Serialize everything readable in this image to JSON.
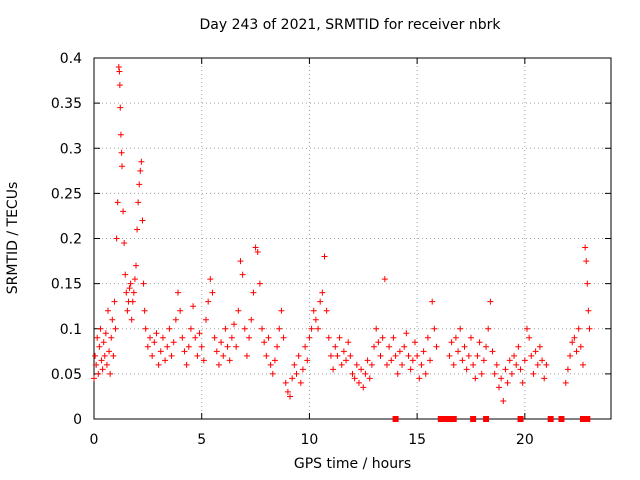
{
  "chart_data": {
    "type": "scatter",
    "title": "Day 243 of 2021, SRMTID for receiver nbrk",
    "xlabel": "GPS time / hours",
    "ylabel": "SRMTID / TECUs",
    "xlim": [
      0,
      24
    ],
    "ylim": [
      0,
      0.4
    ],
    "xticks": [
      0,
      5,
      10,
      15,
      20
    ],
    "xtick_labels": [
      "0",
      "5",
      "10",
      "15",
      "20"
    ],
    "yticks": [
      0,
      0.05,
      0.1,
      0.15,
      0.2,
      0.25,
      0.3,
      0.35,
      0.4
    ],
    "ytick_labels": [
      "0",
      "0.05",
      "0.1",
      "0.15",
      "0.2",
      "0.25",
      "0.3",
      "0.35",
      "0.4"
    ],
    "grid": true,
    "marker": "plus",
    "color": "#ff0000",
    "series": [
      {
        "name": "SRMTID",
        "points": [
          [
            0.0,
            0.045
          ],
          [
            0.05,
            0.07
          ],
          [
            0.1,
            0.06
          ],
          [
            0.15,
            0.09
          ],
          [
            0.2,
            0.05
          ],
          [
            0.25,
            0.08
          ],
          [
            0.3,
            0.1
          ],
          [
            0.35,
            0.065
          ],
          [
            0.4,
            0.055
          ],
          [
            0.45,
            0.085
          ],
          [
            0.5,
            0.07
          ],
          [
            0.55,
            0.095
          ],
          [
            0.6,
            0.06
          ],
          [
            0.65,
            0.12
          ],
          [
            0.7,
            0.075
          ],
          [
            0.75,
            0.05
          ],
          [
            0.8,
            0.09
          ],
          [
            0.85,
            0.11
          ],
          [
            0.9,
            0.07
          ],
          [
            0.95,
            0.13
          ],
          [
            1.0,
            0.1
          ],
          [
            1.05,
            0.2
          ],
          [
            1.1,
            0.24
          ],
          [
            1.15,
            0.39
          ],
          [
            1.18,
            0.385
          ],
          [
            1.2,
            0.37
          ],
          [
            1.22,
            0.345
          ],
          [
            1.25,
            0.315
          ],
          [
            1.28,
            0.295
          ],
          [
            1.3,
            0.28
          ],
          [
            1.35,
            0.23
          ],
          [
            1.4,
            0.195
          ],
          [
            1.45,
            0.16
          ],
          [
            1.5,
            0.14
          ],
          [
            1.55,
            0.12
          ],
          [
            1.6,
            0.13
          ],
          [
            1.65,
            0.145
          ],
          [
            1.7,
            0.15
          ],
          [
            1.75,
            0.11
          ],
          [
            1.8,
            0.13
          ],
          [
            1.85,
            0.14
          ],
          [
            1.9,
            0.155
          ],
          [
            1.95,
            0.17
          ],
          [
            2.0,
            0.21
          ],
          [
            2.05,
            0.24
          ],
          [
            2.1,
            0.26
          ],
          [
            2.15,
            0.275
          ],
          [
            2.2,
            0.285
          ],
          [
            2.25,
            0.22
          ],
          [
            2.3,
            0.15
          ],
          [
            2.35,
            0.12
          ],
          [
            2.4,
            0.1
          ],
          [
            2.5,
            0.08
          ],
          [
            2.6,
            0.09
          ],
          [
            2.7,
            0.07
          ],
          [
            2.8,
            0.085
          ],
          [
            2.9,
            0.095
          ],
          [
            3.0,
            0.06
          ],
          [
            3.1,
            0.075
          ],
          [
            3.2,
            0.09
          ],
          [
            3.3,
            0.065
          ],
          [
            3.4,
            0.08
          ],
          [
            3.5,
            0.1
          ],
          [
            3.6,
            0.07
          ],
          [
            3.7,
            0.085
          ],
          [
            3.8,
            0.11
          ],
          [
            3.9,
            0.14
          ],
          [
            4.0,
            0.12
          ],
          [
            4.1,
            0.09
          ],
          [
            4.2,
            0.075
          ],
          [
            4.3,
            0.06
          ],
          [
            4.4,
            0.08
          ],
          [
            4.5,
            0.1
          ],
          [
            4.6,
            0.125
          ],
          [
            4.7,
            0.09
          ],
          [
            4.8,
            0.07
          ],
          [
            4.9,
            0.095
          ],
          [
            5.0,
            0.08
          ],
          [
            5.1,
            0.065
          ],
          [
            5.2,
            0.11
          ],
          [
            5.3,
            0.13
          ],
          [
            5.4,
            0.155
          ],
          [
            5.5,
            0.14
          ],
          [
            5.6,
            0.09
          ],
          [
            5.7,
            0.075
          ],
          [
            5.8,
            0.06
          ],
          [
            5.9,
            0.085
          ],
          [
            6.0,
            0.07
          ],
          [
            6.1,
            0.1
          ],
          [
            6.2,
            0.08
          ],
          [
            6.3,
            0.065
          ],
          [
            6.4,
            0.09
          ],
          [
            6.5,
            0.105
          ],
          [
            6.6,
            0.08
          ],
          [
            6.7,
            0.12
          ],
          [
            6.8,
            0.175
          ],
          [
            6.9,
            0.16
          ],
          [
            7.0,
            0.1
          ],
          [
            7.1,
            0.07
          ],
          [
            7.2,
            0.09
          ],
          [
            7.3,
            0.11
          ],
          [
            7.4,
            0.14
          ],
          [
            7.5,
            0.19
          ],
          [
            7.6,
            0.185
          ],
          [
            7.7,
            0.15
          ],
          [
            7.8,
            0.1
          ],
          [
            7.9,
            0.085
          ],
          [
            8.0,
            0.07
          ],
          [
            8.1,
            0.09
          ],
          [
            8.2,
            0.06
          ],
          [
            8.3,
            0.05
          ],
          [
            8.4,
            0.065
          ],
          [
            8.5,
            0.08
          ],
          [
            8.6,
            0.1
          ],
          [
            8.7,
            0.12
          ],
          [
            8.8,
            0.09
          ],
          [
            8.9,
            0.04
          ],
          [
            9.0,
            0.03
          ],
          [
            9.1,
            0.025
          ],
          [
            9.2,
            0.045
          ],
          [
            9.3,
            0.06
          ],
          [
            9.4,
            0.05
          ],
          [
            9.5,
            0.07
          ],
          [
            9.6,
            0.04
          ],
          [
            9.7,
            0.055
          ],
          [
            9.8,
            0.08
          ],
          [
            9.9,
            0.065
          ],
          [
            10.0,
            0.09
          ],
          [
            10.1,
            0.1
          ],
          [
            10.2,
            0.12
          ],
          [
            10.3,
            0.11
          ],
          [
            10.4,
            0.1
          ],
          [
            10.5,
            0.13
          ],
          [
            10.6,
            0.14
          ],
          [
            10.7,
            0.18
          ],
          [
            10.8,
            0.12
          ],
          [
            10.9,
            0.09
          ],
          [
            11.0,
            0.07
          ],
          [
            11.1,
            0.055
          ],
          [
            11.2,
            0.08
          ],
          [
            11.3,
            0.07
          ],
          [
            11.4,
            0.09
          ],
          [
            11.5,
            0.06
          ],
          [
            11.6,
            0.075
          ],
          [
            11.7,
            0.065
          ],
          [
            11.8,
            0.085
          ],
          [
            11.9,
            0.07
          ],
          [
            12.0,
            0.05
          ],
          [
            12.1,
            0.045
          ],
          [
            12.2,
            0.06
          ],
          [
            12.3,
            0.04
          ],
          [
            12.4,
            0.055
          ],
          [
            12.5,
            0.035
          ],
          [
            12.6,
            0.05
          ],
          [
            12.7,
            0.065
          ],
          [
            12.8,
            0.045
          ],
          [
            12.9,
            0.06
          ],
          [
            13.0,
            0.08
          ],
          [
            13.1,
            0.1
          ],
          [
            13.2,
            0.085
          ],
          [
            13.3,
            0.07
          ],
          [
            13.4,
            0.09
          ],
          [
            13.5,
            0.155
          ],
          [
            13.6,
            0.06
          ],
          [
            13.7,
            0.08
          ],
          [
            13.8,
            0.065
          ],
          [
            13.9,
            0.09
          ],
          [
            14.0,
            0.07
          ],
          [
            14.1,
            0.05
          ],
          [
            14.2,
            0.075
          ],
          [
            14.3,
            0.06
          ],
          [
            14.4,
            0.08
          ],
          [
            14.5,
            0.095
          ],
          [
            14.6,
            0.07
          ],
          [
            14.7,
            0.055
          ],
          [
            14.8,
            0.065
          ],
          [
            14.9,
            0.085
          ],
          [
            15.0,
            0.07
          ],
          [
            15.1,
            0.045
          ],
          [
            15.2,
            0.06
          ],
          [
            15.3,
            0.075
          ],
          [
            15.4,
            0.05
          ],
          [
            15.5,
            0.09
          ],
          [
            15.6,
            0.065
          ],
          [
            15.7,
            0.13
          ],
          [
            15.8,
            0.1
          ],
          [
            15.9,
            0.08
          ],
          [
            16.5,
            0.07
          ],
          [
            16.6,
            0.085
          ],
          [
            16.7,
            0.06
          ],
          [
            16.8,
            0.09
          ],
          [
            16.9,
            0.075
          ],
          [
            17.0,
            0.1
          ],
          [
            17.1,
            0.065
          ],
          [
            17.2,
            0.08
          ],
          [
            17.3,
            0.055
          ],
          [
            17.4,
            0.07
          ],
          [
            17.5,
            0.09
          ],
          [
            17.6,
            0.06
          ],
          [
            17.7,
            0.045
          ],
          [
            17.8,
            0.07
          ],
          [
            17.9,
            0.085
          ],
          [
            18.0,
            0.05
          ],
          [
            18.1,
            0.065
          ],
          [
            18.2,
            0.08
          ],
          [
            18.3,
            0.1
          ],
          [
            18.4,
            0.13
          ],
          [
            18.5,
            0.075
          ],
          [
            18.6,
            0.05
          ],
          [
            18.7,
            0.06
          ],
          [
            18.8,
            0.035
          ],
          [
            18.9,
            0.045
          ],
          [
            19.0,
            0.02
          ],
          [
            19.1,
            0.055
          ],
          [
            19.2,
            0.04
          ],
          [
            19.3,
            0.065
          ],
          [
            19.4,
            0.05
          ],
          [
            19.5,
            0.07
          ],
          [
            19.6,
            0.06
          ],
          [
            19.7,
            0.08
          ],
          [
            19.8,
            0.055
          ],
          [
            19.9,
            0.04
          ],
          [
            20.0,
            0.065
          ],
          [
            20.1,
            0.1
          ],
          [
            20.2,
            0.09
          ],
          [
            20.3,
            0.07
          ],
          [
            20.4,
            0.05
          ],
          [
            20.5,
            0.075
          ],
          [
            20.6,
            0.06
          ],
          [
            20.7,
            0.08
          ],
          [
            20.8,
            0.065
          ],
          [
            20.9,
            0.045
          ],
          [
            21.0,
            0.06
          ],
          [
            21.9,
            0.04
          ],
          [
            22.0,
            0.055
          ],
          [
            22.1,
            0.07
          ],
          [
            22.2,
            0.085
          ],
          [
            22.3,
            0.09
          ],
          [
            22.4,
            0.075
          ],
          [
            22.5,
            0.1
          ],
          [
            22.6,
            0.08
          ],
          [
            22.7,
            0.06
          ],
          [
            22.8,
            0.19
          ],
          [
            22.85,
            0.175
          ],
          [
            22.9,
            0.15
          ],
          [
            22.95,
            0.12
          ],
          [
            23.0,
            0.1
          ]
        ]
      }
    ],
    "zero_markers_x": [
      14.0,
      16.1,
      16.3,
      16.5,
      16.7,
      17.6,
      18.2,
      19.8,
      21.2,
      21.7,
      22.7,
      22.9
    ]
  }
}
